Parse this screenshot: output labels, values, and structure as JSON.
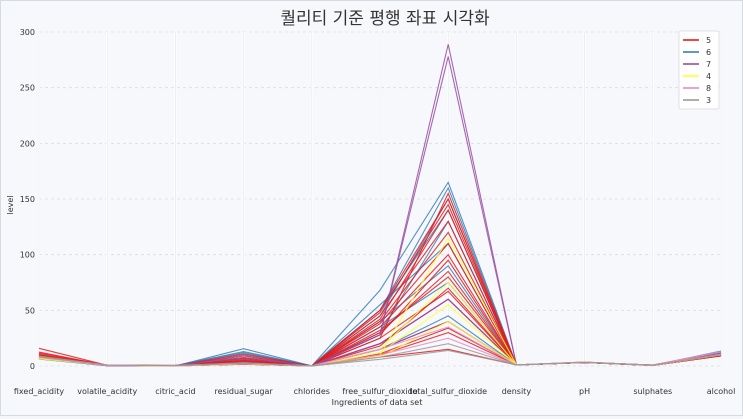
{
  "chart_data": {
    "type": "parallel_coordinates",
    "title": "퀄리티 기준 평행 좌표 시각화",
    "xlabel": "Ingredients of data set",
    "ylabel": "level",
    "ylim": [
      0,
      300
    ],
    "yticks": [
      "0",
      "50",
      "100",
      "150",
      "200",
      "250",
      "300"
    ],
    "categories": [
      "fixed_acidity",
      "volatile_acidity",
      "citric_acid",
      "residual_sugar",
      "chlorides",
      "free_sulfur_dioxide",
      "total_sulfur_dioxide",
      "density",
      "pH",
      "sulphates",
      "alcohol"
    ],
    "grid": true,
    "legend": {
      "placement": "top-right",
      "title": "",
      "entries": [
        "5",
        "6",
        "7",
        "4",
        "8",
        "3"
      ]
    },
    "series_colors": {
      "5": "#e41a1c",
      "6": "#377eb8",
      "7": "#984ea3",
      "4": "#ffff33",
      "8": "#e78ac3",
      "3": "#999999"
    },
    "series": [
      {
        "name": "6",
        "lines": [
          [
            7.8,
            0.6,
            0.1,
            15.5,
            0.08,
            68,
            165,
            0.997,
            3.3,
            0.6,
            10.5
          ],
          [
            7.0,
            0.4,
            0.3,
            13.0,
            0.05,
            50,
            160,
            0.996,
            3.2,
            0.5,
            11.0
          ],
          [
            6.5,
            0.3,
            0.3,
            7.0,
            0.04,
            30,
            130,
            0.995,
            3.2,
            0.5,
            12.5
          ],
          [
            8.0,
            0.4,
            0.4,
            4.0,
            0.08,
            55,
            110,
            0.997,
            3.4,
            0.7,
            10.0
          ],
          [
            7.2,
            0.5,
            0.2,
            2.0,
            0.07,
            40,
            90,
            0.996,
            3.3,
            0.6,
            11.5
          ],
          [
            6.8,
            0.3,
            0.3,
            10.0,
            0.05,
            45,
            150,
            0.995,
            3.2,
            0.5,
            13.0
          ],
          [
            7.5,
            0.4,
            0.3,
            5.0,
            0.06,
            35,
            75,
            0.996,
            3.3,
            0.6,
            11.0
          ],
          [
            9.0,
            0.5,
            0.4,
            2.5,
            0.09,
            15,
            45,
            0.998,
            3.3,
            0.7,
            10.5
          ],
          [
            6.2,
            0.3,
            0.3,
            1.5,
            0.04,
            20,
            60,
            0.993,
            3.3,
            0.5,
            13.5
          ],
          [
            7.6,
            0.4,
            0.3,
            12.0,
            0.06,
            50,
            140,
            0.997,
            3.2,
            0.6,
            10.8
          ]
        ]
      },
      {
        "name": "5",
        "lines": [
          [
            15.9,
            0.6,
            0.5,
            2.0,
            0.1,
            20,
            60,
            0.999,
            3.1,
            0.7,
            9.0
          ],
          [
            11.5,
            0.7,
            0.1,
            3.0,
            0.09,
            25,
            155,
            0.998,
            3.2,
            0.6,
            9.4
          ],
          [
            7.4,
            0.7,
            0.0,
            1.9,
            0.08,
            11,
            34,
            0.998,
            3.5,
            0.6,
            9.4
          ],
          [
            7.8,
            0.9,
            0.0,
            2.6,
            0.1,
            25,
            67,
            0.997,
            3.2,
            0.7,
            9.8
          ],
          [
            8.0,
            0.6,
            0.2,
            11.0,
            0.07,
            50,
            150,
            0.998,
            3.2,
            0.5,
            9.2
          ],
          [
            8.5,
            0.5,
            0.3,
            7.0,
            0.08,
            45,
            130,
            0.997,
            3.2,
            0.6,
            9.5
          ],
          [
            7.2,
            0.6,
            0.1,
            5.0,
            0.07,
            40,
            120,
            0.997,
            3.3,
            0.5,
            9.6
          ],
          [
            9.5,
            0.6,
            0.3,
            2.2,
            0.09,
            35,
            100,
            0.998,
            3.2,
            0.6,
            9.8
          ],
          [
            8.8,
            0.5,
            0.3,
            3.5,
            0.08,
            30,
            85,
            0.998,
            3.2,
            0.6,
            9.5
          ],
          [
            7.6,
            0.6,
            0.2,
            2.8,
            0.08,
            18,
            70,
            0.997,
            3.3,
            0.6,
            9.9
          ],
          [
            10.5,
            0.5,
            0.4,
            1.8,
            0.09,
            10,
            30,
            0.998,
            3.2,
            0.7,
            9.7
          ],
          [
            6.9,
            0.7,
            0.1,
            9.0,
            0.06,
            42,
            140,
            0.997,
            3.2,
            0.5,
            9.3
          ],
          [
            8.2,
            0.6,
            0.2,
            4.5,
            0.08,
            38,
            110,
            0.997,
            3.3,
            0.6,
            9.5
          ],
          [
            7.0,
            0.6,
            0.1,
            1.6,
            0.08,
            8,
            15,
            0.997,
            3.3,
            0.6,
            9.6
          ],
          [
            12.5,
            0.5,
            0.5,
            2.5,
            0.09,
            28,
            95,
            0.999,
            3.1,
            0.7,
            9.4
          ],
          [
            8.9,
            0.6,
            0.3,
            6.0,
            0.08,
            48,
            145,
            0.998,
            3.2,
            0.6,
            9.2
          ],
          [
            7.3,
            0.7,
            0.1,
            2.0,
            0.08,
            15,
            40,
            0.997,
            3.3,
            0.6,
            9.8
          ],
          [
            9.8,
            0.5,
            0.3,
            3.0,
            0.09,
            32,
            80,
            0.998,
            3.2,
            0.6,
            9.6
          ]
        ]
      },
      {
        "name": "7",
        "lines": [
          [
            7.9,
            0.3,
            0.5,
            7.5,
            0.05,
            28,
            289,
            0.996,
            3.2,
            0.8,
            12.0
          ],
          [
            7.9,
            0.3,
            0.5,
            7.5,
            0.05,
            28,
            278,
            0.996,
            3.2,
            0.8,
            12.0
          ],
          [
            8.5,
            0.4,
            0.4,
            2.5,
            0.07,
            20,
            60,
            0.997,
            3.3,
            0.8,
            11.8
          ],
          [
            7.2,
            0.3,
            0.4,
            3.0,
            0.06,
            15,
            40,
            0.996,
            3.3,
            0.7,
            12.2
          ]
        ]
      },
      {
        "name": "4",
        "lines": [
          [
            7.1,
            0.9,
            0.1,
            2.0,
            0.07,
            10,
            115,
            0.997,
            3.4,
            0.6,
            10.2
          ],
          [
            8.0,
            0.7,
            0.2,
            2.5,
            0.08,
            15,
            75,
            0.997,
            3.3,
            0.5,
            10.0
          ],
          [
            6.5,
            0.6,
            0.1,
            1.8,
            0.07,
            8,
            40,
            0.996,
            3.4,
            0.5,
            10.5
          ],
          [
            7.3,
            0.7,
            0.1,
            2.2,
            0.08,
            12,
            55,
            0.997,
            3.3,
            0.6,
            10.3
          ]
        ]
      },
      {
        "name": "8",
        "lines": [
          [
            7.5,
            0.4,
            0.4,
            2.0,
            0.06,
            10,
            25,
            0.995,
            3.3,
            0.8,
            12.5
          ],
          [
            8.6,
            0.4,
            0.5,
            2.5,
            0.07,
            15,
            35,
            0.996,
            3.2,
            0.8,
            13.0
          ]
        ]
      },
      {
        "name": "3",
        "lines": [
          [
            8.3,
            1.0,
            0.1,
            2.5,
            0.1,
            8,
            20,
            0.998,
            3.4,
            0.6,
            10.0
          ],
          [
            9.0,
            0.9,
            0.2,
            3.0,
            0.1,
            6,
            14,
            0.998,
            3.3,
            0.6,
            10.5
          ]
        ]
      }
    ]
  }
}
